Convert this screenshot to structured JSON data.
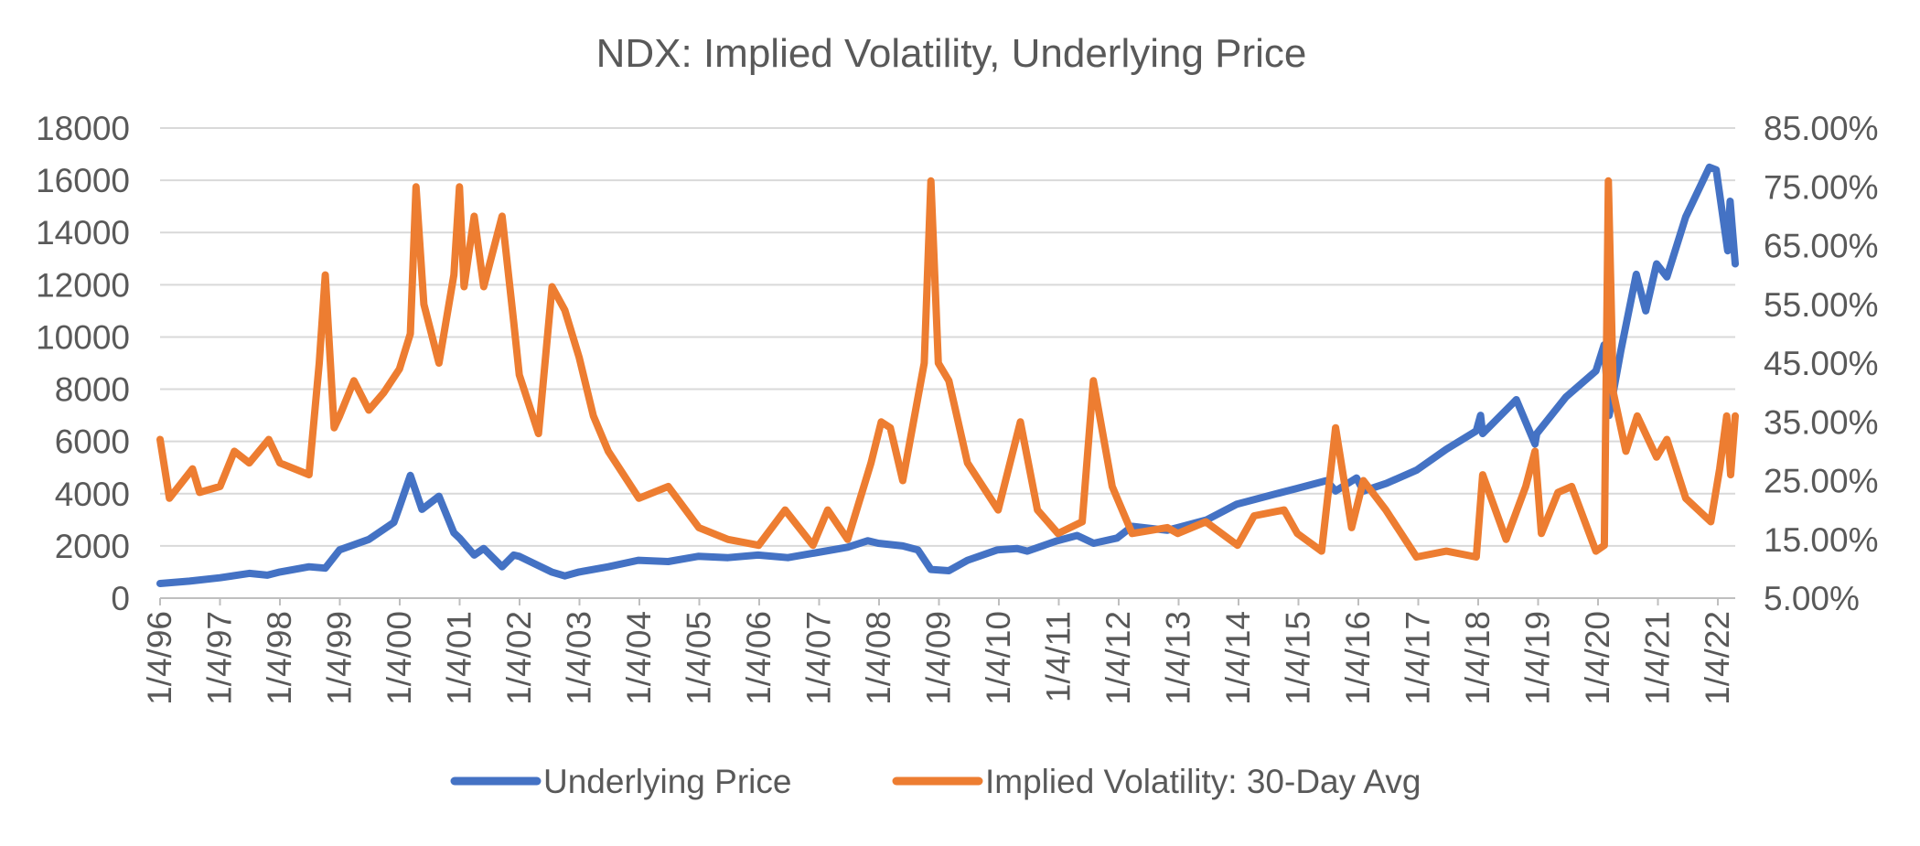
{
  "chart_data": {
    "type": "line",
    "title": "NDX: Implied Volatility, Underlying Price",
    "x_tick_labels": [
      "1/4/96",
      "1/4/97",
      "1/4/98",
      "1/4/99",
      "1/4/00",
      "1/4/01",
      "1/4/02",
      "1/4/03",
      "1/4/04",
      "1/4/05",
      "1/4/06",
      "1/4/07",
      "1/4/08",
      "1/4/09",
      "1/4/10",
      "1/4/11",
      "1/4/12",
      "1/4/13",
      "1/4/14",
      "1/4/15",
      "1/4/16",
      "1/4/17",
      "1/4/18",
      "1/4/19",
      "1/4/20",
      "1/4/21",
      "1/4/22"
    ],
    "y_left": {
      "ylim": [
        0,
        18000
      ],
      "ticks": [
        "0",
        "2000",
        "4000",
        "6000",
        "8000",
        "10000",
        "12000",
        "14000",
        "16000",
        "18000"
      ]
    },
    "y_right": {
      "ylim": [
        0.05,
        0.85
      ],
      "ticks": [
        "5.00%",
        "15.00%",
        "25.00%",
        "35.00%",
        "45.00%",
        "55.00%",
        "65.00%",
        "75.00%",
        "85.00%"
      ]
    },
    "grid": "horizontal",
    "legend_position": "bottom",
    "series": [
      {
        "name": "Underlying Price",
        "axis": "left",
        "color": "#4472C4",
        "points": [
          [
            "1996-01-04",
            560
          ],
          [
            "1996-07-01",
            650
          ],
          [
            "1997-01-04",
            780
          ],
          [
            "1997-07-01",
            950
          ],
          [
            "1997-10-20",
            880
          ],
          [
            "1998-01-04",
            1000
          ],
          [
            "1998-07-01",
            1200
          ],
          [
            "1998-10-08",
            1150
          ],
          [
            "1999-01-04",
            1850
          ],
          [
            "1999-07-01",
            2250
          ],
          [
            "1999-12-01",
            2900
          ],
          [
            "2000-01-04",
            3500
          ],
          [
            "2000-03-10",
            4700
          ],
          [
            "2000-05-20",
            3400
          ],
          [
            "2000-09-01",
            3900
          ],
          [
            "2000-12-01",
            2500
          ],
          [
            "2001-01-04",
            2300
          ],
          [
            "2001-04-04",
            1650
          ],
          [
            "2001-06-01",
            1900
          ],
          [
            "2001-09-21",
            1200
          ],
          [
            "2001-12-01",
            1650
          ],
          [
            "2002-01-04",
            1600
          ],
          [
            "2002-07-20",
            1000
          ],
          [
            "2002-10-09",
            850
          ],
          [
            "2003-01-04",
            1000
          ],
          [
            "2003-07-01",
            1200
          ],
          [
            "2003-12-31",
            1450
          ],
          [
            "2004-07-01",
            1400
          ],
          [
            "2004-12-31",
            1600
          ],
          [
            "2005-07-01",
            1550
          ],
          [
            "2005-12-31",
            1650
          ],
          [
            "2006-07-01",
            1550
          ],
          [
            "2006-12-31",
            1750
          ],
          [
            "2007-07-01",
            1950
          ],
          [
            "2007-11-01",
            2200
          ],
          [
            "2008-01-04",
            2100
          ],
          [
            "2008-06-01",
            2000
          ],
          [
            "2008-09-01",
            1850
          ],
          [
            "2008-11-20",
            1100
          ],
          [
            "2009-03-09",
            1050
          ],
          [
            "2009-07-01",
            1450
          ],
          [
            "2009-12-31",
            1850
          ],
          [
            "2010-05-01",
            1900
          ],
          [
            "2010-07-01",
            1800
          ],
          [
            "2010-12-31",
            2200
          ],
          [
            "2011-05-01",
            2400
          ],
          [
            "2011-08-10",
            2100
          ],
          [
            "2011-12-31",
            2300
          ],
          [
            "2012-04-01",
            2750
          ],
          [
            "2012-11-01",
            2600
          ],
          [
            "2013-01-04",
            2700
          ],
          [
            "2013-07-01",
            3000
          ],
          [
            "2013-12-31",
            3600
          ],
          [
            "2014-07-01",
            3900
          ],
          [
            "2014-12-31",
            4200
          ],
          [
            "2015-07-01",
            4500
          ],
          [
            "2015-08-25",
            4100
          ],
          [
            "2015-12-31",
            4600
          ],
          [
            "2016-02-11",
            4100
          ],
          [
            "2016-07-01",
            4400
          ],
          [
            "2016-12-31",
            4900
          ],
          [
            "2017-07-01",
            5700
          ],
          [
            "2017-12-31",
            6400
          ],
          [
            "2018-01-26",
            7000
          ],
          [
            "2018-02-08",
            6300
          ],
          [
            "2018-09-01",
            7600
          ],
          [
            "2018-12-24",
            5900
          ],
          [
            "2019-01-04",
            6300
          ],
          [
            "2019-07-01",
            7700
          ],
          [
            "2019-12-31",
            8700
          ],
          [
            "2020-02-19",
            9700
          ],
          [
            "2020-03-20",
            7000
          ],
          [
            "2020-06-01",
            9500
          ],
          [
            "2020-09-02",
            12400
          ],
          [
            "2020-10-30",
            11000
          ],
          [
            "2021-01-04",
            12800
          ],
          [
            "2021-03-08",
            12300
          ],
          [
            "2021-07-01",
            14600
          ],
          [
            "2021-11-22",
            16500
          ],
          [
            "2022-01-03",
            16400
          ],
          [
            "2022-03-14",
            13300
          ],
          [
            "2022-03-29",
            15200
          ],
          [
            "2022-04-29",
            12800
          ]
        ]
      },
      {
        "name": "Implied Volatility: 30-Day Avg",
        "axis": "right",
        "color": "#ED7D31",
        "points": [
          [
            "1996-01-04",
            0.32
          ],
          [
            "1996-03-01",
            0.22
          ],
          [
            "1996-07-20",
            0.27
          ],
          [
            "1996-09-01",
            0.23
          ],
          [
            "1997-01-04",
            0.24
          ],
          [
            "1997-04-01",
            0.3
          ],
          [
            "1997-07-01",
            0.28
          ],
          [
            "1997-10-28",
            0.32
          ],
          [
            "1998-01-04",
            0.28
          ],
          [
            "1998-07-01",
            0.26
          ],
          [
            "1998-09-01",
            0.45
          ],
          [
            "1998-10-08",
            0.6
          ],
          [
            "1998-12-01",
            0.34
          ],
          [
            "1999-01-04",
            0.36
          ],
          [
            "1999-04-01",
            0.42
          ],
          [
            "1999-07-01",
            0.37
          ],
          [
            "1999-10-01",
            0.4
          ],
          [
            "2000-01-04",
            0.44
          ],
          [
            "2000-03-10",
            0.5
          ],
          [
            "2000-04-14",
            0.75
          ],
          [
            "2000-06-01",
            0.55
          ],
          [
            "2000-09-01",
            0.45
          ],
          [
            "2000-12-01",
            0.6
          ],
          [
            "2001-01-04",
            0.75
          ],
          [
            "2001-02-01",
            0.58
          ],
          [
            "2001-04-04",
            0.7
          ],
          [
            "2001-06-01",
            0.58
          ],
          [
            "2001-09-21",
            0.7
          ],
          [
            "2001-12-01",
            0.52
          ],
          [
            "2002-01-04",
            0.43
          ],
          [
            "2002-05-01",
            0.33
          ],
          [
            "2002-07-23",
            0.58
          ],
          [
            "2002-10-09",
            0.54
          ],
          [
            "2003-01-04",
            0.46
          ],
          [
            "2003-04-01",
            0.36
          ],
          [
            "2003-07-01",
            0.3
          ],
          [
            "2004-01-04",
            0.22
          ],
          [
            "2004-07-01",
            0.24
          ],
          [
            "2005-01-04",
            0.17
          ],
          [
            "2005-07-01",
            0.15
          ],
          [
            "2006-01-04",
            0.14
          ],
          [
            "2006-06-14",
            0.2
          ],
          [
            "2006-12-01",
            0.14
          ],
          [
            "2007-03-01",
            0.2
          ],
          [
            "2007-07-01",
            0.15
          ],
          [
            "2007-11-20",
            0.28
          ],
          [
            "2008-01-22",
            0.35
          ],
          [
            "2008-03-17",
            0.34
          ],
          [
            "2008-06-01",
            0.25
          ],
          [
            "2008-10-10",
            0.45
          ],
          [
            "2008-11-20",
            0.76
          ],
          [
            "2009-01-04",
            0.45
          ],
          [
            "2009-03-09",
            0.42
          ],
          [
            "2009-07-01",
            0.28
          ],
          [
            "2010-01-04",
            0.2
          ],
          [
            "2010-05-20",
            0.35
          ],
          [
            "2010-09-01",
            0.2
          ],
          [
            "2011-01-04",
            0.16
          ],
          [
            "2011-06-01",
            0.18
          ],
          [
            "2011-08-08",
            0.42
          ],
          [
            "2011-12-01",
            0.24
          ],
          [
            "2012-04-01",
            0.16
          ],
          [
            "2012-11-01",
            0.17
          ],
          [
            "2013-01-04",
            0.16
          ],
          [
            "2013-06-24",
            0.18
          ],
          [
            "2014-01-04",
            0.14
          ],
          [
            "2014-04-15",
            0.19
          ],
          [
            "2014-10-15",
            0.2
          ],
          [
            "2015-01-04",
            0.16
          ],
          [
            "2015-06-01",
            0.13
          ],
          [
            "2015-08-25",
            0.34
          ],
          [
            "2015-12-01",
            0.17
          ],
          [
            "2016-02-11",
            0.25
          ],
          [
            "2016-06-27",
            0.2
          ],
          [
            "2016-12-31",
            0.12
          ],
          [
            "2017-07-01",
            0.13
          ],
          [
            "2017-12-31",
            0.12
          ],
          [
            "2018-02-08",
            0.26
          ],
          [
            "2018-07-01",
            0.15
          ],
          [
            "2018-10-29",
            0.24
          ],
          [
            "2018-12-24",
            0.3
          ],
          [
            "2019-02-01",
            0.16
          ],
          [
            "2019-05-13",
            0.23
          ],
          [
            "2019-08-05",
            0.24
          ],
          [
            "2019-12-31",
            0.13
          ],
          [
            "2020-02-20",
            0.14
          ],
          [
            "2020-03-16",
            0.76
          ],
          [
            "2020-04-15",
            0.4
          ],
          [
            "2020-07-01",
            0.3
          ],
          [
            "2020-09-08",
            0.36
          ],
          [
            "2021-01-04",
            0.29
          ],
          [
            "2021-03-08",
            0.32
          ],
          [
            "2021-07-01",
            0.22
          ],
          [
            "2021-12-01",
            0.18
          ],
          [
            "2022-01-24",
            0.27
          ],
          [
            "2022-03-08",
            0.36
          ],
          [
            "2022-04-01",
            0.26
          ],
          [
            "2022-04-29",
            0.36
          ]
        ]
      }
    ]
  }
}
